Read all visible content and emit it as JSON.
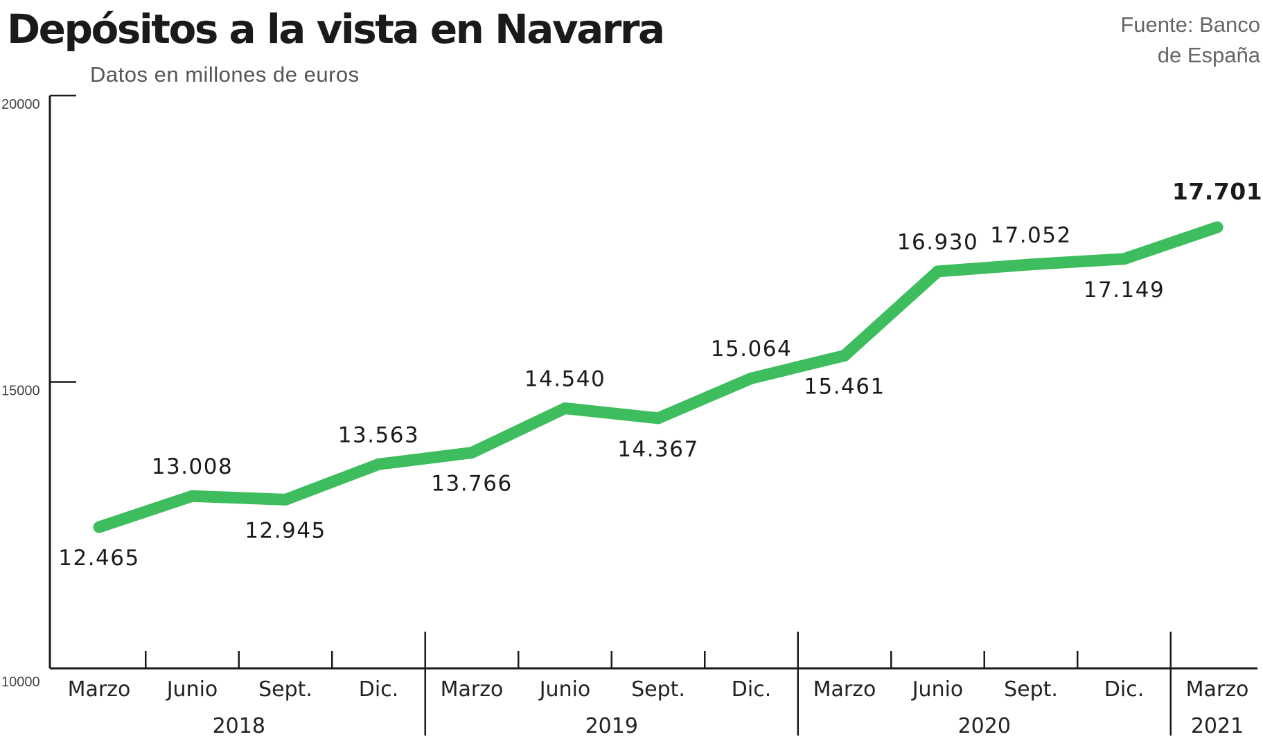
{
  "header": {
    "title": "Depósitos a la vista en Navarra",
    "subtitle": "Datos en millones de euros",
    "source_line1": "Fuente: Banco",
    "source_line2": "de España"
  },
  "colors": {
    "line": "#3ebd5e",
    "axis": "#1a1a1a"
  },
  "chart_data": {
    "type": "line",
    "title": "Depósitos a la vista en Navarra",
    "subtitle": "Datos en millones de euros",
    "ylim": [
      10000,
      20000
    ],
    "y_ticks": [
      10000,
      15000,
      20000
    ],
    "y_tick_labels": [
      "10000",
      "15000",
      "20000"
    ],
    "grid": false,
    "legend": "none",
    "categories": [
      "Marzo",
      "Junio",
      "Sept.",
      "Dic.",
      "Marzo",
      "Junio",
      "Sept.",
      "Dic.",
      "Marzo",
      "Junio",
      "Sept.",
      "Dic.",
      "Marzo"
    ],
    "years": [
      {
        "label": "2018",
        "span": 4
      },
      {
        "label": "2019",
        "span": 4
      },
      {
        "label": "2020",
        "span": 4
      },
      {
        "label": "2021",
        "span": 1
      }
    ],
    "series": [
      {
        "values": [
          12465,
          13008,
          12945,
          13563,
          13766,
          14540,
          14367,
          15064,
          15461,
          16930,
          17052,
          17149,
          17701
        ],
        "labels": [
          "12.465",
          "13.008",
          "12.945",
          "13.563",
          "13.766",
          "14.540",
          "14.367",
          "15.064",
          "15.461",
          "16.930",
          "17.052",
          "17.149",
          "17.701"
        ],
        "label_positions": [
          "below",
          "above",
          "below",
          "above",
          "below",
          "above",
          "below",
          "above",
          "below",
          "above",
          "above",
          "below",
          "above"
        ]
      }
    ]
  }
}
